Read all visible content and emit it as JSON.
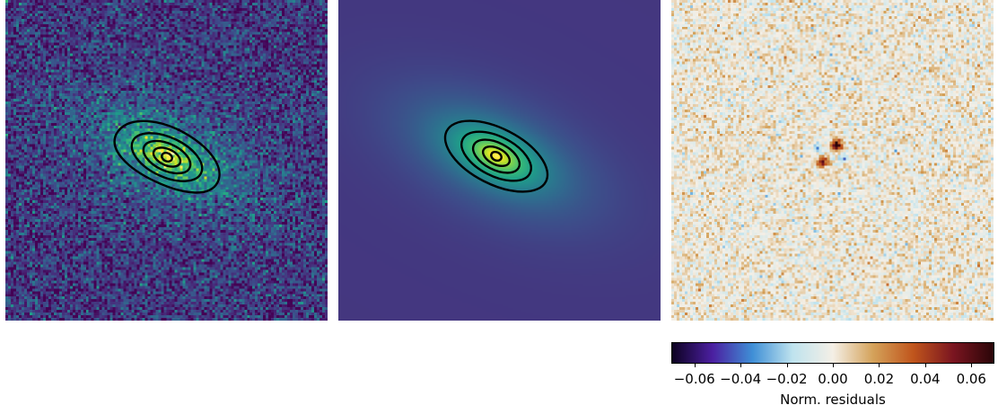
{
  "panels": [
    {
      "name": "observed-image",
      "colormap": "viridis",
      "contours": 5
    },
    {
      "name": "model-image",
      "colormap": "viridis",
      "contours": 5
    },
    {
      "name": "residual-image",
      "colormap": "icefire-diverging"
    }
  ],
  "colorbar": {
    "label": "Norm. residuals",
    "range": [
      -0.07,
      0.07
    ],
    "ticks": [
      "−0.06",
      "−0.04",
      "−0.02",
      "0.00",
      "0.02",
      "0.04",
      "0.06"
    ],
    "tick_values": [
      -0.06,
      -0.04,
      -0.02,
      0.0,
      0.02,
      0.04,
      0.06
    ],
    "colors": [
      "#0d0221",
      "#4b1fa0",
      "#3f8fd6",
      "#bfe3ee",
      "#f4efe6",
      "#d4a25a",
      "#c0551c",
      "#7a1520",
      "#2a0508"
    ]
  }
}
